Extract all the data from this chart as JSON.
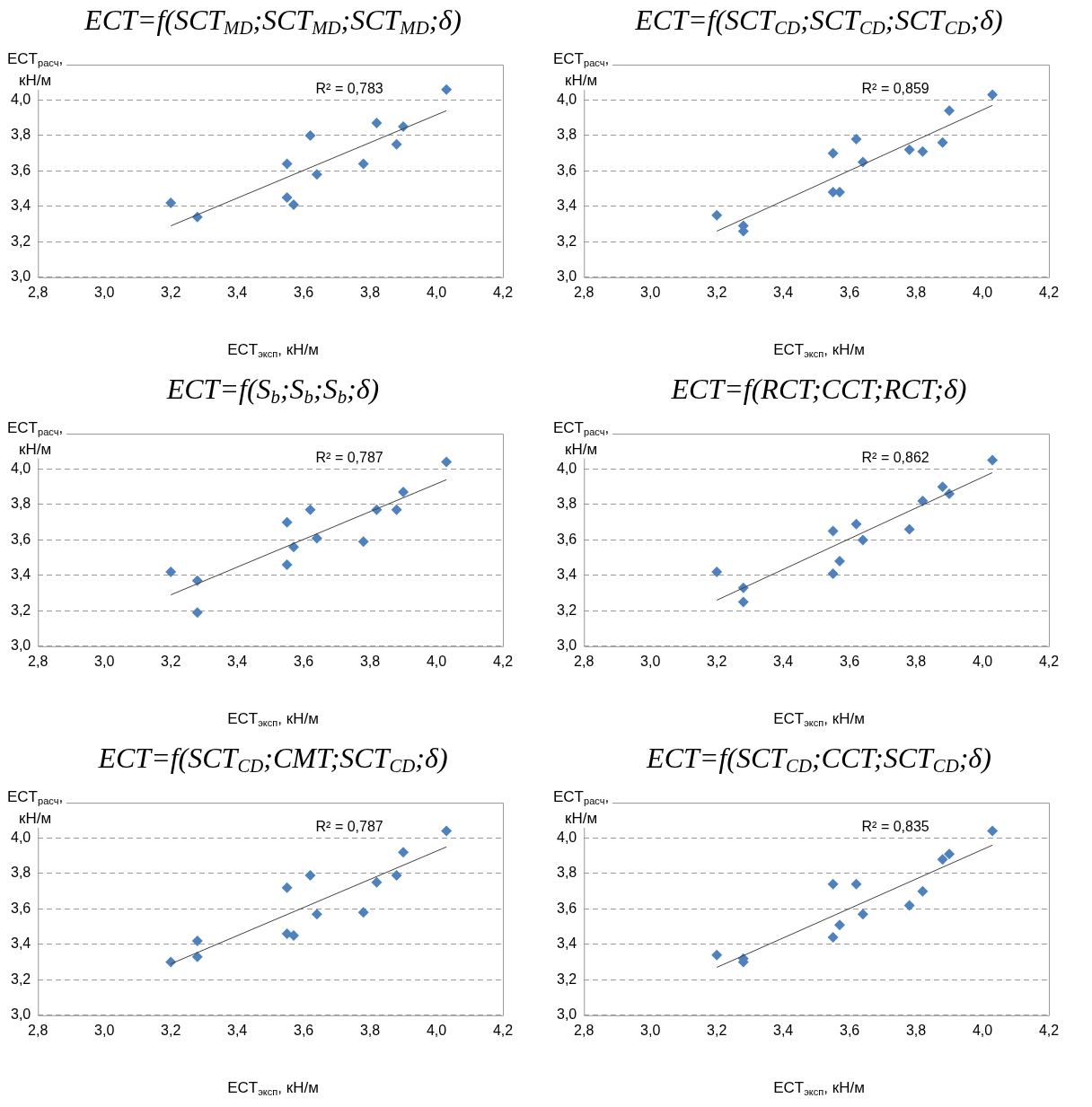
{
  "chart_data": [
    {
      "type": "scatter",
      "title": "ECT=f(SCT$_{MD}$;SCT$_{MD}$;SCT$_{MD}$;δ)",
      "xlabel": "ECT$_{эксп}$, кН/м",
      "ylabel": "ECT$_{расч}$, кН/м",
      "xlim": [
        2.8,
        4.2
      ],
      "ylim": [
        3.0,
        4.2
      ],
      "xticks": [
        {
          "value": 2.8,
          "label": "2,8"
        },
        {
          "value": 3.0,
          "label": "3,0"
        },
        {
          "value": 3.2,
          "label": "3,2"
        },
        {
          "value": 3.4,
          "label": "3,4"
        },
        {
          "value": 3.6,
          "label": "3,6"
        },
        {
          "value": 3.8,
          "label": "3,8"
        },
        {
          "value": 4.0,
          "label": "4,0"
        },
        {
          "value": 4.2,
          "label": "4,2"
        }
      ],
      "yticks": [
        {
          "value": 3.0,
          "label": "3,0"
        },
        {
          "value": 3.2,
          "label": "3,2"
        },
        {
          "value": 3.4,
          "label": "3,4"
        },
        {
          "value": 3.6,
          "label": "3,6"
        },
        {
          "value": 3.8,
          "label": "3,8"
        },
        {
          "value": 4.0,
          "label": "4,0"
        }
      ],
      "grid": "y",
      "legend": false,
      "marker": "diamond",
      "annotations": [
        "R² = 0,783"
      ],
      "series": [
        {
          "color": "#4f81bd",
          "x": [
            3.2,
            3.28,
            3.55,
            3.55,
            3.57,
            3.62,
            3.64,
            3.78,
            3.82,
            3.88,
            3.9,
            4.03
          ],
          "values": [
            3.42,
            3.34,
            3.64,
            3.45,
            3.41,
            3.8,
            3.58,
            3.64,
            3.87,
            3.75,
            3.85,
            4.06
          ]
        },
        {
          "type": "line",
          "color": "#404040",
          "marker": "none",
          "x": [
            3.2,
            4.03
          ],
          "values": [
            3.29,
            3.94
          ]
        }
      ]
    },
    {
      "type": "scatter",
      "title": "ECT=f(SCT$_{CD}$;SCT$_{CD}$;SCT$_{CD}$;δ)",
      "xlabel": "ECT$_{эксп}$, кН/м",
      "ylabel": "ECT$_{расч}$, кН/м",
      "xlim": [
        2.8,
        4.2
      ],
      "ylim": [
        3.0,
        4.2
      ],
      "xticks": [
        {
          "value": 2.8,
          "label": "2,8"
        },
        {
          "value": 3.0,
          "label": "3,0"
        },
        {
          "value": 3.2,
          "label": "3,2"
        },
        {
          "value": 3.4,
          "label": "3,4"
        },
        {
          "value": 3.6,
          "label": "3,6"
        },
        {
          "value": 3.8,
          "label": "3,8"
        },
        {
          "value": 4.0,
          "label": "4,0"
        },
        {
          "value": 4.2,
          "label": "4,2"
        }
      ],
      "yticks": [
        {
          "value": 3.0,
          "label": "3,0"
        },
        {
          "value": 3.2,
          "label": "3,2"
        },
        {
          "value": 3.4,
          "label": "3,4"
        },
        {
          "value": 3.6,
          "label": "3,6"
        },
        {
          "value": 3.8,
          "label": "3,8"
        },
        {
          "value": 4.0,
          "label": "4,0"
        }
      ],
      "grid": "y",
      "legend": false,
      "marker": "diamond",
      "annotations": [
        "R² = 0,859"
      ],
      "series": [
        {
          "color": "#4f81bd",
          "x": [
            3.2,
            3.28,
            3.28,
            3.55,
            3.55,
            3.57,
            3.62,
            3.64,
            3.78,
            3.82,
            3.88,
            3.9,
            4.03
          ],
          "values": [
            3.35,
            3.29,
            3.26,
            3.7,
            3.48,
            3.48,
            3.78,
            3.65,
            3.72,
            3.71,
            3.76,
            3.94,
            4.03
          ]
        },
        {
          "type": "line",
          "color": "#404040",
          "marker": "none",
          "x": [
            3.2,
            4.03
          ],
          "values": [
            3.26,
            3.97
          ]
        }
      ]
    },
    {
      "type": "scatter",
      "title": "ECT=f(S$_{b}$;S$_{b}$;S$_{b}$;δ)",
      "xlabel": "ECT$_{эксп}$, кН/м",
      "ylabel": "ECT$_{расч}$, кН/м",
      "xlim": [
        2.8,
        4.2
      ],
      "ylim": [
        3.0,
        4.2
      ],
      "xticks": [
        {
          "value": 2.8,
          "label": "2,8"
        },
        {
          "value": 3.0,
          "label": "3,0"
        },
        {
          "value": 3.2,
          "label": "3,2"
        },
        {
          "value": 3.4,
          "label": "3,4"
        },
        {
          "value": 3.6,
          "label": "3,6"
        },
        {
          "value": 3.8,
          "label": "3,8"
        },
        {
          "value": 4.0,
          "label": "4,0"
        },
        {
          "value": 4.2,
          "label": "4,2"
        }
      ],
      "yticks": [
        {
          "value": 3.0,
          "label": "3,0"
        },
        {
          "value": 3.2,
          "label": "3,2"
        },
        {
          "value": 3.4,
          "label": "3,4"
        },
        {
          "value": 3.6,
          "label": "3,6"
        },
        {
          "value": 3.8,
          "label": "3,8"
        },
        {
          "value": 4.0,
          "label": "4,0"
        }
      ],
      "grid": "y",
      "legend": false,
      "marker": "diamond",
      "annotations": [
        "R² = 0,787"
      ],
      "series": [
        {
          "color": "#4f81bd",
          "x": [
            3.2,
            3.28,
            3.28,
            3.55,
            3.55,
            3.57,
            3.62,
            3.64,
            3.78,
            3.82,
            3.88,
            3.9,
            4.03
          ],
          "values": [
            3.42,
            3.37,
            3.19,
            3.7,
            3.46,
            3.56,
            3.77,
            3.61,
            3.59,
            3.77,
            3.77,
            3.87,
            4.04
          ]
        },
        {
          "type": "line",
          "color": "#404040",
          "marker": "none",
          "x": [
            3.2,
            4.03
          ],
          "values": [
            3.29,
            3.94
          ]
        }
      ]
    },
    {
      "type": "scatter",
      "title": "ECT=f(RCT;CCT;RCT;δ)",
      "xlabel": "ECT$_{эксп}$, кН/м",
      "ylabel": "ECT$_{расч}$, кН/м",
      "xlim": [
        2.8,
        4.2
      ],
      "ylim": [
        3.0,
        4.2
      ],
      "xticks": [
        {
          "value": 2.8,
          "label": "2,8"
        },
        {
          "value": 3.0,
          "label": "3,0"
        },
        {
          "value": 3.2,
          "label": "3,2"
        },
        {
          "value": 3.4,
          "label": "3,4"
        },
        {
          "value": 3.6,
          "label": "3,6"
        },
        {
          "value": 3.8,
          "label": "3,8"
        },
        {
          "value": 4.0,
          "label": "4,0"
        },
        {
          "value": 4.2,
          "label": "4,2"
        }
      ],
      "yticks": [
        {
          "value": 3.0,
          "label": "3,0"
        },
        {
          "value": 3.2,
          "label": "3,2"
        },
        {
          "value": 3.4,
          "label": "3,4"
        },
        {
          "value": 3.6,
          "label": "3,6"
        },
        {
          "value": 3.8,
          "label": "3,8"
        },
        {
          "value": 4.0,
          "label": "4,0"
        }
      ],
      "grid": "y",
      "legend": false,
      "marker": "diamond",
      "annotations": [
        "R² = 0,862"
      ],
      "series": [
        {
          "color": "#4f81bd",
          "x": [
            3.2,
            3.28,
            3.28,
            3.55,
            3.55,
            3.57,
            3.62,
            3.64,
            3.78,
            3.82,
            3.88,
            3.9,
            4.03
          ],
          "values": [
            3.42,
            3.33,
            3.25,
            3.65,
            3.41,
            3.48,
            3.69,
            3.6,
            3.66,
            3.82,
            3.9,
            3.86,
            4.05
          ]
        },
        {
          "type": "line",
          "color": "#404040",
          "marker": "none",
          "x": [
            3.2,
            4.03
          ],
          "values": [
            3.26,
            3.98
          ]
        }
      ]
    },
    {
      "type": "scatter",
      "title": "ECT=f(SCT$_{CD}$;CMT;SCT$_{CD}$;δ)",
      "xlabel": "ECT$_{эксп}$, кН/м",
      "ylabel": "ECT$_{расч}$, кН/м",
      "xlim": [
        2.8,
        4.2
      ],
      "ylim": [
        3.0,
        4.2
      ],
      "xticks": [
        {
          "value": 2.8,
          "label": "2,8"
        },
        {
          "value": 3.0,
          "label": "3,0"
        },
        {
          "value": 3.2,
          "label": "3,2"
        },
        {
          "value": 3.4,
          "label": "3,4"
        },
        {
          "value": 3.6,
          "label": "3,6"
        },
        {
          "value": 3.8,
          "label": "3,8"
        },
        {
          "value": 4.0,
          "label": "4,0"
        },
        {
          "value": 4.2,
          "label": "4,2"
        }
      ],
      "yticks": [
        {
          "value": 3.0,
          "label": "3,0"
        },
        {
          "value": 3.2,
          "label": "3,2"
        },
        {
          "value": 3.4,
          "label": "3,4"
        },
        {
          "value": 3.6,
          "label": "3,6"
        },
        {
          "value": 3.8,
          "label": "3,8"
        },
        {
          "value": 4.0,
          "label": "4,0"
        }
      ],
      "grid": "y",
      "legend": false,
      "marker": "diamond",
      "annotations": [
        "R² = 0,787"
      ],
      "series": [
        {
          "color": "#4f81bd",
          "x": [
            3.2,
            3.28,
            3.28,
            3.55,
            3.55,
            3.57,
            3.62,
            3.64,
            3.78,
            3.82,
            3.88,
            3.9,
            4.03
          ],
          "values": [
            3.3,
            3.42,
            3.33,
            3.72,
            3.46,
            3.45,
            3.79,
            3.57,
            3.58,
            3.75,
            3.79,
            3.92,
            4.04
          ]
        },
        {
          "type": "line",
          "color": "#404040",
          "marker": "none",
          "x": [
            3.2,
            4.03
          ],
          "values": [
            3.29,
            3.95
          ]
        }
      ]
    },
    {
      "type": "scatter",
      "title": "ECT=f(SCT$_{CD}$;CCT;SCT$_{CD}$;δ)",
      "xlabel": "ECT$_{эксп}$, кН/м",
      "ylabel": "ECT$_{расч}$, кН/м",
      "xlim": [
        2.8,
        4.2
      ],
      "ylim": [
        3.0,
        4.2
      ],
      "xticks": [
        {
          "value": 2.8,
          "label": "2,8"
        },
        {
          "value": 3.0,
          "label": "3,0"
        },
        {
          "value": 3.2,
          "label": "3,2"
        },
        {
          "value": 3.4,
          "label": "3,4"
        },
        {
          "value": 3.6,
          "label": "3,6"
        },
        {
          "value": 3.8,
          "label": "3,8"
        },
        {
          "value": 4.0,
          "label": "4,0"
        },
        {
          "value": 4.2,
          "label": "4,2"
        }
      ],
      "yticks": [
        {
          "value": 3.0,
          "label": "3,0"
        },
        {
          "value": 3.2,
          "label": "3,2"
        },
        {
          "value": 3.4,
          "label": "3,4"
        },
        {
          "value": 3.6,
          "label": "3,6"
        },
        {
          "value": 3.8,
          "label": "3,8"
        },
        {
          "value": 4.0,
          "label": "4,0"
        }
      ],
      "grid": "y",
      "legend": false,
      "marker": "diamond",
      "annotations": [
        "R² = 0,835"
      ],
      "series": [
        {
          "color": "#4f81bd",
          "x": [
            3.2,
            3.28,
            3.28,
            3.55,
            3.55,
            3.57,
            3.62,
            3.64,
            3.78,
            3.82,
            3.88,
            3.9,
            4.03
          ],
          "values": [
            3.34,
            3.32,
            3.3,
            3.74,
            3.44,
            3.51,
            3.74,
            3.57,
            3.62,
            3.7,
            3.88,
            3.91,
            4.04
          ]
        },
        {
          "type": "line",
          "color": "#404040",
          "marker": "none",
          "x": [
            3.2,
            4.03
          ],
          "values": [
            3.27,
            3.96
          ]
        }
      ]
    }
  ]
}
